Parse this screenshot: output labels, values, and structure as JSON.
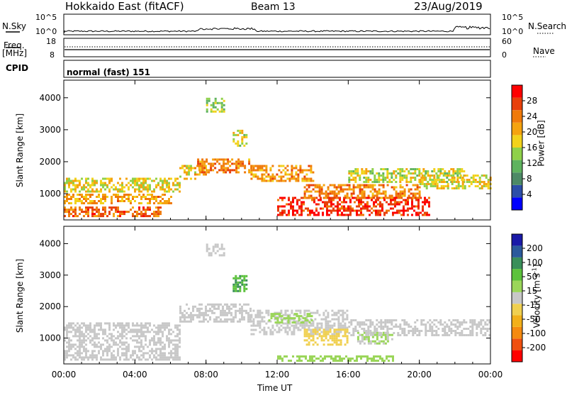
{
  "header": {
    "radar_title": "Hokkaido East (fitACF)",
    "beam": "Beam 13",
    "date": "23/Aug/2019"
  },
  "top_panels": {
    "nsky_label": "N.Sky",
    "nsky_ticks": [
      "10^5",
      "10^0"
    ],
    "nsearch_ticks": [
      "10^5",
      "10^0"
    ],
    "nsearch_label": "N.Search",
    "freq_label": "Freq.",
    "freq_unit": "[MHz]",
    "freq_ticks": [
      "18",
      "8"
    ],
    "nave_ticks": [
      "60",
      "0"
    ],
    "nave_label": "Nave",
    "cpid_label": "CPID",
    "cpid_value": "normal (fast) 151"
  },
  "colors": {
    "power_scale": [
      "#0000ff",
      "#2c4ea8",
      "#4d8a66",
      "#5fb35f",
      "#8fd14a",
      "#f2d21b",
      "#f5a30f",
      "#f07a0a",
      "#e8400b",
      "#ff0000"
    ],
    "velocity_scale": [
      "#ff0000",
      "#f05010",
      "#f58a10",
      "#f2b01a",
      "#f0d050",
      "#c8c8c8",
      "#9bd65a",
      "#5cc23c",
      "#3a8f5a",
      "#2b5a9c",
      "#1a1aa8"
    ],
    "background": "#ffffff"
  },
  "chart_data": [
    {
      "type": "heatmap",
      "title": "Power",
      "xlabel": "",
      "ylabel": "Slant Range [km]",
      "x_ticks": [
        "00:00",
        "04:00",
        "08:00",
        "12:00",
        "16:00",
        "20:00",
        "00:00"
      ],
      "y_ticks": [
        "1000",
        "2000",
        "3000",
        "4000"
      ],
      "ylim": [
        180,
        4550
      ],
      "xlim_hours": [
        0,
        24
      ],
      "colorbar_label": "Power [dB]",
      "colorbar_ticks": [
        "4",
        "8",
        "12",
        "16",
        "20",
        "24",
        "28"
      ],
      "colorbar_range": [
        0,
        32
      ],
      "echo_regions": [
        {
          "t": [
            0.0,
            5.5
          ],
          "r": [
            330,
            600
          ],
          "value": 26
        },
        {
          "t": [
            0.0,
            6.0
          ],
          "r": [
            700,
            1000
          ],
          "value": 22
        },
        {
          "t": [
            0.0,
            6.5
          ],
          "r": [
            1100,
            1500
          ],
          "value": 18
        },
        {
          "t": [
            6.5,
            8.0
          ],
          "r": [
            1500,
            1900
          ],
          "value": 20
        },
        {
          "t": [
            7.5,
            10.5
          ],
          "r": [
            1700,
            2100
          ],
          "value": 24
        },
        {
          "t": [
            10.5,
            14.0
          ],
          "r": [
            1400,
            1900
          ],
          "value": 22
        },
        {
          "t": [
            12.0,
            20.5
          ],
          "r": [
            330,
            900
          ],
          "value": 30
        },
        {
          "t": [
            13.5,
            20.0
          ],
          "r": [
            900,
            1300
          ],
          "value": 24
        },
        {
          "t": [
            16.0,
            22.5
          ],
          "r": [
            1400,
            1800
          ],
          "value": 16
        },
        {
          "t": [
            20.0,
            24.0
          ],
          "r": [
            1200,
            1600
          ],
          "value": 18
        },
        {
          "t": [
            8.0,
            9.0
          ],
          "r": [
            3600,
            4000
          ],
          "value": 14
        },
        {
          "t": [
            9.5,
            10.3
          ],
          "r": [
            2500,
            3000
          ],
          "value": 16
        }
      ]
    },
    {
      "type": "heatmap",
      "title": "Velocity",
      "xlabel": "Time UT",
      "ylabel": "Slant Range [km]",
      "x_ticks": [
        "00:00",
        "04:00",
        "08:00",
        "12:00",
        "16:00",
        "20:00",
        "00:00"
      ],
      "y_ticks": [
        "1000",
        "2000",
        "3000",
        "4000"
      ],
      "ylim": [
        180,
        4550
      ],
      "xlim_hours": [
        0,
        24
      ],
      "colorbar_label": "Velocity [m s^-1]",
      "colorbar_unit_parts": [
        "Velocity [m s",
        "-1",
        "]"
      ],
      "colorbar_ticks": [
        "-200",
        "-100",
        "-50",
        "-15",
        "15",
        "50",
        "100",
        "200"
      ],
      "echo_regions": [
        {
          "t": [
            0.0,
            6.5
          ],
          "r": [
            330,
            1500
          ],
          "value": 0
        },
        {
          "t": [
            6.5,
            10.5
          ],
          "r": [
            1500,
            2100
          ],
          "value": 0
        },
        {
          "t": [
            10.5,
            16.0
          ],
          "r": [
            1100,
            1900
          ],
          "value": 0
        },
        {
          "t": [
            13.5,
            16.0
          ],
          "r": [
            800,
            1300
          ],
          "value": -40
        },
        {
          "t": [
            16.5,
            18.5
          ],
          "r": [
            800,
            1200
          ],
          "value": 30
        },
        {
          "t": [
            12.0,
            18.5
          ],
          "r": [
            250,
            450
          ],
          "value": 40
        },
        {
          "t": [
            11.5,
            14.0
          ],
          "r": [
            1500,
            1800
          ],
          "value": 60
        },
        {
          "t": [
            16.0,
            24.0
          ],
          "r": [
            1100,
            1600
          ],
          "value": 0
        },
        {
          "t": [
            8.0,
            9.0
          ],
          "r": [
            3600,
            4000
          ],
          "value": 0
        },
        {
          "t": [
            9.5,
            10.3
          ],
          "r": [
            2500,
            3000
          ],
          "value": 120
        }
      ]
    }
  ]
}
